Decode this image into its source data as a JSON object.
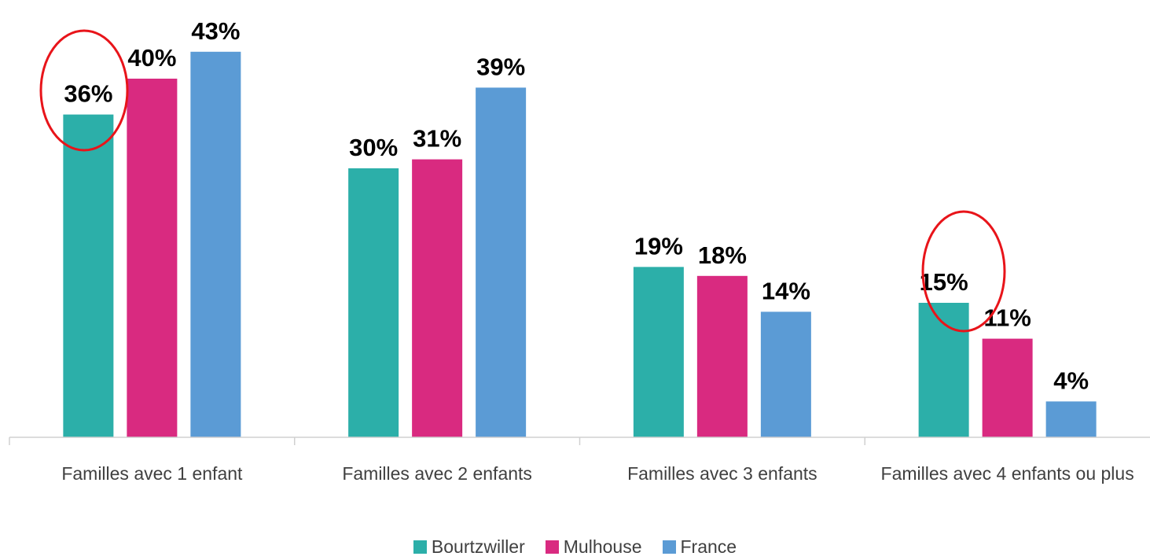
{
  "chart_data": {
    "type": "bar",
    "categories": [
      "Familles avec 1 enfant",
      "Familles avec 2 enfants",
      "Familles avec 3 enfants",
      "Familles avec 4 enfants ou plus"
    ],
    "series": [
      {
        "name": "Bourtzwiller",
        "color": "#2cafa9",
        "values": [
          36,
          30,
          19,
          15
        ],
        "value_labels": [
          "36%",
          "30%",
          "19%",
          "15%"
        ]
      },
      {
        "name": "Mulhouse",
        "color": "#d92a80",
        "values": [
          40,
          31,
          18,
          11
        ],
        "value_labels": [
          "40%",
          "31%",
          "18%",
          "11%"
        ]
      },
      {
        "name": "France",
        "color": "#5b9bd5",
        "values": [
          43,
          39,
          14,
          4
        ],
        "value_labels": [
          "43%",
          "39%",
          "14%",
          "4%"
        ]
      }
    ],
    "legend": "bottom"
  }
}
